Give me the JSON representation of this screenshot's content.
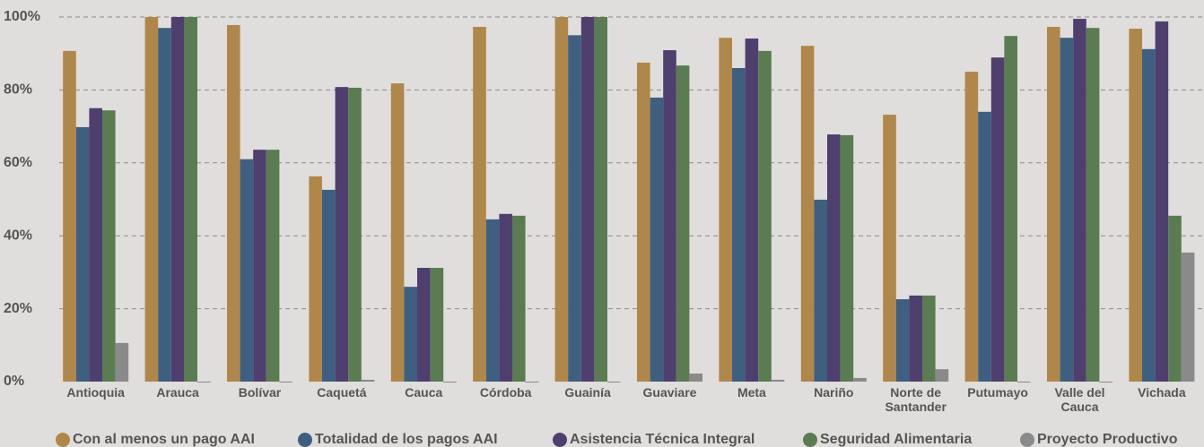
{
  "chart_data": {
    "type": "bar",
    "categories": [
      "Antioquia",
      "Arauca",
      "Bolívar",
      "Caquetá",
      "Cauca",
      "Córdoba",
      "Guainía",
      "Guaviare",
      "Meta",
      "Nariño",
      "Norte de Santander",
      "Putumayo",
      "Valle del Cauca",
      "Vichada"
    ],
    "series": [
      {
        "name": "Con al menos un pago AAI",
        "color": "#b0874a",
        "values": [
          90.7,
          100,
          97.8,
          56.3,
          81.8,
          97.3,
          100,
          87.5,
          94.3,
          92.1,
          73.2,
          85,
          97.3,
          96.8
        ]
      },
      {
        "name": "Totalidad de los pagos AAI",
        "color": "#3f5f80",
        "values": [
          69.8,
          97,
          61,
          52.6,
          26,
          44.5,
          95,
          77.9,
          86,
          49.9,
          22.6,
          74,
          94.3,
          91.2
        ]
      },
      {
        "name": "Asistencia Técnica Integral",
        "color": "#4f3f6e",
        "values": [
          75,
          100,
          63.6,
          80.8,
          31.2,
          46,
          100,
          90.9,
          94.1,
          67.8,
          23.6,
          88.9,
          99.5,
          98.8
        ]
      },
      {
        "name": "Seguridad Alimentaria",
        "color": "#5b7b52",
        "values": [
          74.4,
          100,
          63.6,
          80.6,
          31.2,
          45.5,
          100,
          86.7,
          90.7,
          67.6,
          23.6,
          94.8,
          97,
          45.5
        ]
      },
      {
        "name": "Proyecto Productivo",
        "color": "#8a8a8a",
        "values": [
          10.6,
          0,
          0,
          0.5,
          0,
          0,
          0,
          2.2,
          0.5,
          1,
          3.4,
          0,
          0,
          35.4
        ]
      }
    ],
    "ylim": [
      0,
      100
    ],
    "yticks": [
      {
        "value": 0,
        "label": "0%"
      },
      {
        "value": 20,
        "label": "20%"
      },
      {
        "value": 40,
        "label": "40%"
      },
      {
        "value": 60,
        "label": "60%"
      },
      {
        "value": 80,
        "label": "80%"
      },
      {
        "value": 100,
        "label": "100%"
      }
    ],
    "grid": true,
    "legend": "bottom"
  }
}
